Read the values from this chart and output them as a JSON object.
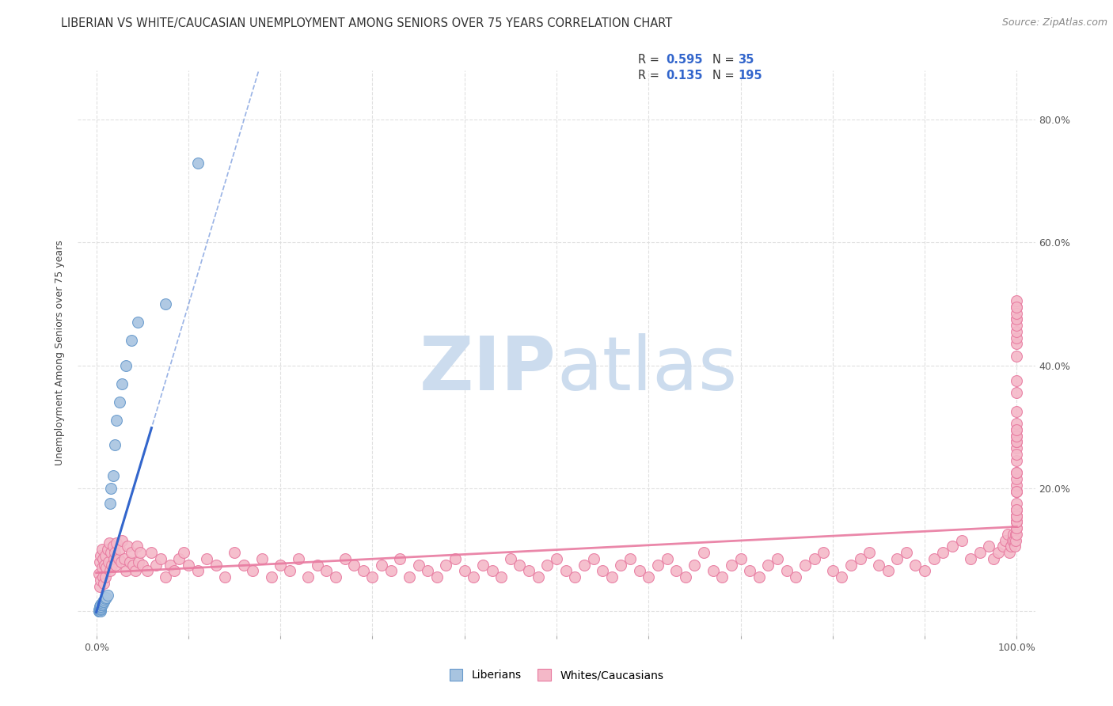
{
  "title": "LIBERIAN VS WHITE/CAUCASIAN UNEMPLOYMENT AMONG SENIORS OVER 75 YEARS CORRELATION CHART",
  "source": "Source: ZipAtlas.com",
  "ylabel": "Unemployment Among Seniors over 75 years",
  "xlim": [
    -0.02,
    1.02
  ],
  "ylim": [
    -0.04,
    0.88
  ],
  "liberian_color": "#a8c4e0",
  "liberian_edge_color": "#6699cc",
  "white_color": "#f4b8c8",
  "white_edge_color": "#e87aa0",
  "regression_blue_color": "#3366cc",
  "regression_pink_color": "#e87aa0",
  "watermark_color": "#ccdcee",
  "background_color": "#ffffff",
  "grid_color": "#dddddd",
  "title_fontsize": 10.5,
  "axis_label_fontsize": 9,
  "tick_fontsize": 9,
  "legend_fontsize": 10.5,
  "source_fontsize": 9,
  "liberian_x": [
    0.003,
    0.003,
    0.003,
    0.004,
    0.004,
    0.004,
    0.004,
    0.004,
    0.005,
    0.005,
    0.005,
    0.005,
    0.005,
    0.005,
    0.006,
    0.006,
    0.007,
    0.007,
    0.008,
    0.009,
    0.01,
    0.011,
    0.012,
    0.015,
    0.016,
    0.018,
    0.02,
    0.022,
    0.025,
    0.028,
    0.032,
    0.038,
    0.045,
    0.075,
    0.11
  ],
  "liberian_y": [
    0.0,
    0.0,
    0.002,
    0.0,
    0.002,
    0.004,
    0.006,
    0.008,
    0.0,
    0.002,
    0.004,
    0.006,
    0.008,
    0.01,
    0.01,
    0.012,
    0.012,
    0.015,
    0.015,
    0.018,
    0.02,
    0.022,
    0.025,
    0.175,
    0.2,
    0.22,
    0.27,
    0.31,
    0.34,
    0.37,
    0.4,
    0.44,
    0.47,
    0.5,
    0.73
  ],
  "white_x": [
    0.003,
    0.004,
    0.004,
    0.005,
    0.005,
    0.006,
    0.006,
    0.007,
    0.007,
    0.008,
    0.009,
    0.01,
    0.01,
    0.011,
    0.012,
    0.013,
    0.014,
    0.015,
    0.016,
    0.017,
    0.018,
    0.019,
    0.02,
    0.021,
    0.022,
    0.024,
    0.025,
    0.027,
    0.028,
    0.03,
    0.032,
    0.034,
    0.036,
    0.038,
    0.04,
    0.042,
    0.044,
    0.046,
    0.048,
    0.05,
    0.055,
    0.06,
    0.065,
    0.07,
    0.075,
    0.08,
    0.085,
    0.09,
    0.095,
    0.1,
    0.11,
    0.12,
    0.13,
    0.14,
    0.15,
    0.16,
    0.17,
    0.18,
    0.19,
    0.2,
    0.21,
    0.22,
    0.23,
    0.24,
    0.25,
    0.26,
    0.27,
    0.28,
    0.29,
    0.3,
    0.31,
    0.32,
    0.33,
    0.34,
    0.35,
    0.36,
    0.37,
    0.38,
    0.39,
    0.4,
    0.41,
    0.42,
    0.43,
    0.44,
    0.45,
    0.46,
    0.47,
    0.48,
    0.49,
    0.5,
    0.51,
    0.52,
    0.53,
    0.54,
    0.55,
    0.56,
    0.57,
    0.58,
    0.59,
    0.6,
    0.61,
    0.62,
    0.63,
    0.64,
    0.65,
    0.66,
    0.67,
    0.68,
    0.69,
    0.7,
    0.71,
    0.72,
    0.73,
    0.74,
    0.75,
    0.76,
    0.77,
    0.78,
    0.79,
    0.8,
    0.81,
    0.82,
    0.83,
    0.84,
    0.85,
    0.86,
    0.87,
    0.88,
    0.89,
    0.9,
    0.91,
    0.92,
    0.93,
    0.94,
    0.95,
    0.96,
    0.97,
    0.975,
    0.98,
    0.985,
    0.988,
    0.99,
    0.992,
    0.994,
    0.995,
    0.996,
    0.997,
    0.998,
    0.999,
    0.999,
    1.0,
    1.0,
    1.0,
    1.0,
    1.0,
    1.0,
    1.0,
    1.0,
    1.0,
    1.0,
    1.0,
    1.0,
    1.0,
    1.0,
    1.0,
    1.0,
    1.0,
    1.0,
    1.0,
    1.0,
    1.0,
    1.0,
    1.0,
    1.0,
    1.0,
    1.0,
    1.0,
    1.0,
    1.0,
    1.0,
    1.0,
    1.0,
    1.0,
    1.0,
    1.0,
    1.0,
    1.0,
    1.0,
    1.0,
    1.0,
    1.0,
    1.0,
    1.0,
    1.0,
    1.0
  ],
  "white_y": [
    0.06,
    0.04,
    0.08,
    0.05,
    0.09,
    0.07,
    0.1,
    0.055,
    0.085,
    0.045,
    0.075,
    0.055,
    0.09,
    0.07,
    0.1,
    0.08,
    0.11,
    0.065,
    0.095,
    0.075,
    0.105,
    0.085,
    0.095,
    0.075,
    0.11,
    0.085,
    0.1,
    0.08,
    0.115,
    0.085,
    0.065,
    0.105,
    0.08,
    0.095,
    0.075,
    0.065,
    0.105,
    0.08,
    0.095,
    0.075,
    0.065,
    0.095,
    0.075,
    0.085,
    0.055,
    0.075,
    0.065,
    0.085,
    0.095,
    0.075,
    0.065,
    0.085,
    0.075,
    0.055,
    0.095,
    0.075,
    0.065,
    0.085,
    0.055,
    0.075,
    0.065,
    0.085,
    0.055,
    0.075,
    0.065,
    0.055,
    0.085,
    0.075,
    0.065,
    0.055,
    0.075,
    0.065,
    0.085,
    0.055,
    0.075,
    0.065,
    0.055,
    0.075,
    0.085,
    0.065,
    0.055,
    0.075,
    0.065,
    0.055,
    0.085,
    0.075,
    0.065,
    0.055,
    0.075,
    0.085,
    0.065,
    0.055,
    0.075,
    0.085,
    0.065,
    0.055,
    0.075,
    0.085,
    0.065,
    0.055,
    0.075,
    0.085,
    0.065,
    0.055,
    0.075,
    0.095,
    0.065,
    0.055,
    0.075,
    0.085,
    0.065,
    0.055,
    0.075,
    0.085,
    0.065,
    0.055,
    0.075,
    0.085,
    0.095,
    0.065,
    0.055,
    0.075,
    0.085,
    0.095,
    0.075,
    0.065,
    0.085,
    0.095,
    0.075,
    0.065,
    0.085,
    0.095,
    0.105,
    0.115,
    0.085,
    0.095,
    0.105,
    0.085,
    0.095,
    0.105,
    0.115,
    0.125,
    0.095,
    0.105,
    0.115,
    0.125,
    0.115,
    0.105,
    0.125,
    0.115,
    0.135,
    0.145,
    0.125,
    0.155,
    0.135,
    0.145,
    0.155,
    0.165,
    0.145,
    0.155,
    0.165,
    0.175,
    0.195,
    0.155,
    0.195,
    0.205,
    0.165,
    0.215,
    0.225,
    0.195,
    0.225,
    0.245,
    0.265,
    0.275,
    0.255,
    0.285,
    0.295,
    0.305,
    0.275,
    0.285,
    0.295,
    0.325,
    0.355,
    0.375,
    0.415,
    0.435,
    0.445,
    0.455,
    0.475,
    0.495,
    0.505,
    0.465,
    0.475,
    0.485,
    0.495
  ]
}
